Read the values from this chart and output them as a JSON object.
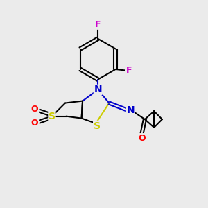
{
  "bg_color": "#ebebeb",
  "bond_color": "#000000",
  "N_color": "#0000cc",
  "S_color": "#cccc00",
  "O_color": "#ff0000",
  "F_color": "#cc00cc",
  "line_width": 1.5,
  "fig_size": [
    3.0,
    3.0
  ],
  "dpi": 100,
  "xlim": [
    0,
    10
  ],
  "ylim": [
    0,
    10
  ]
}
